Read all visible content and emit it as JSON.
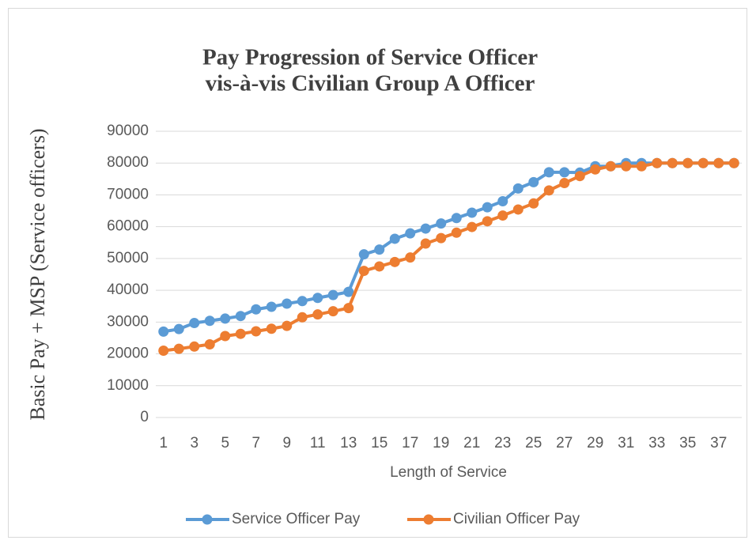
{
  "chart_data": {
    "type": "line",
    "title": [
      "Pay Progression of Service Officer",
      "vis-à-vis Civilian Group A Officer"
    ],
    "x_label": "Length of Service",
    "y_label": "Basic Pay + MSP (Service officers)",
    "categories": [
      1,
      null,
      3,
      null,
      5,
      null,
      7,
      null,
      9,
      null,
      11,
      null,
      13,
      null,
      15,
      null,
      17,
      null,
      19,
      null,
      21,
      null,
      23,
      null,
      25,
      null,
      27,
      null,
      29,
      null,
      31,
      null,
      33,
      null,
      35,
      null,
      37,
      null
    ],
    "series": [
      {
        "name": "Service Officer Pay",
        "color": "#5b9bd5",
        "values": [
          27000,
          27800,
          29700,
          30400,
          31100,
          31900,
          34000,
          34800,
          35800,
          36600,
          37600,
          38500,
          39500,
          51300,
          52800,
          56200,
          57900,
          59400,
          61000,
          62700,
          64400,
          66100,
          68000,
          72000,
          74000,
          77100,
          77100,
          77000,
          79000,
          79000,
          80000,
          80000,
          80000,
          80000,
          80000,
          80000,
          80000,
          80000
        ]
      },
      {
        "name": "Civilian Officer Pay",
        "color": "#ed7d31",
        "values": [
          21000,
          21600,
          22300,
          23000,
          25600,
          26300,
          27100,
          27900,
          28800,
          31500,
          32400,
          33400,
          34400,
          46100,
          47500,
          48900,
          50300,
          54700,
          56400,
          58100,
          59900,
          61700,
          63500,
          65400,
          67300,
          71400,
          73700,
          75900,
          78000,
          79000,
          79000,
          79000,
          80000,
          80000,
          80000,
          80000,
          80000,
          80000
        ]
      }
    ],
    "ylim": [
      0,
      90000
    ],
    "yticks": [
      0,
      10000,
      20000,
      30000,
      40000,
      50000,
      60000,
      70000,
      80000,
      90000
    ],
    "grid": true,
    "legend": "bottom"
  }
}
